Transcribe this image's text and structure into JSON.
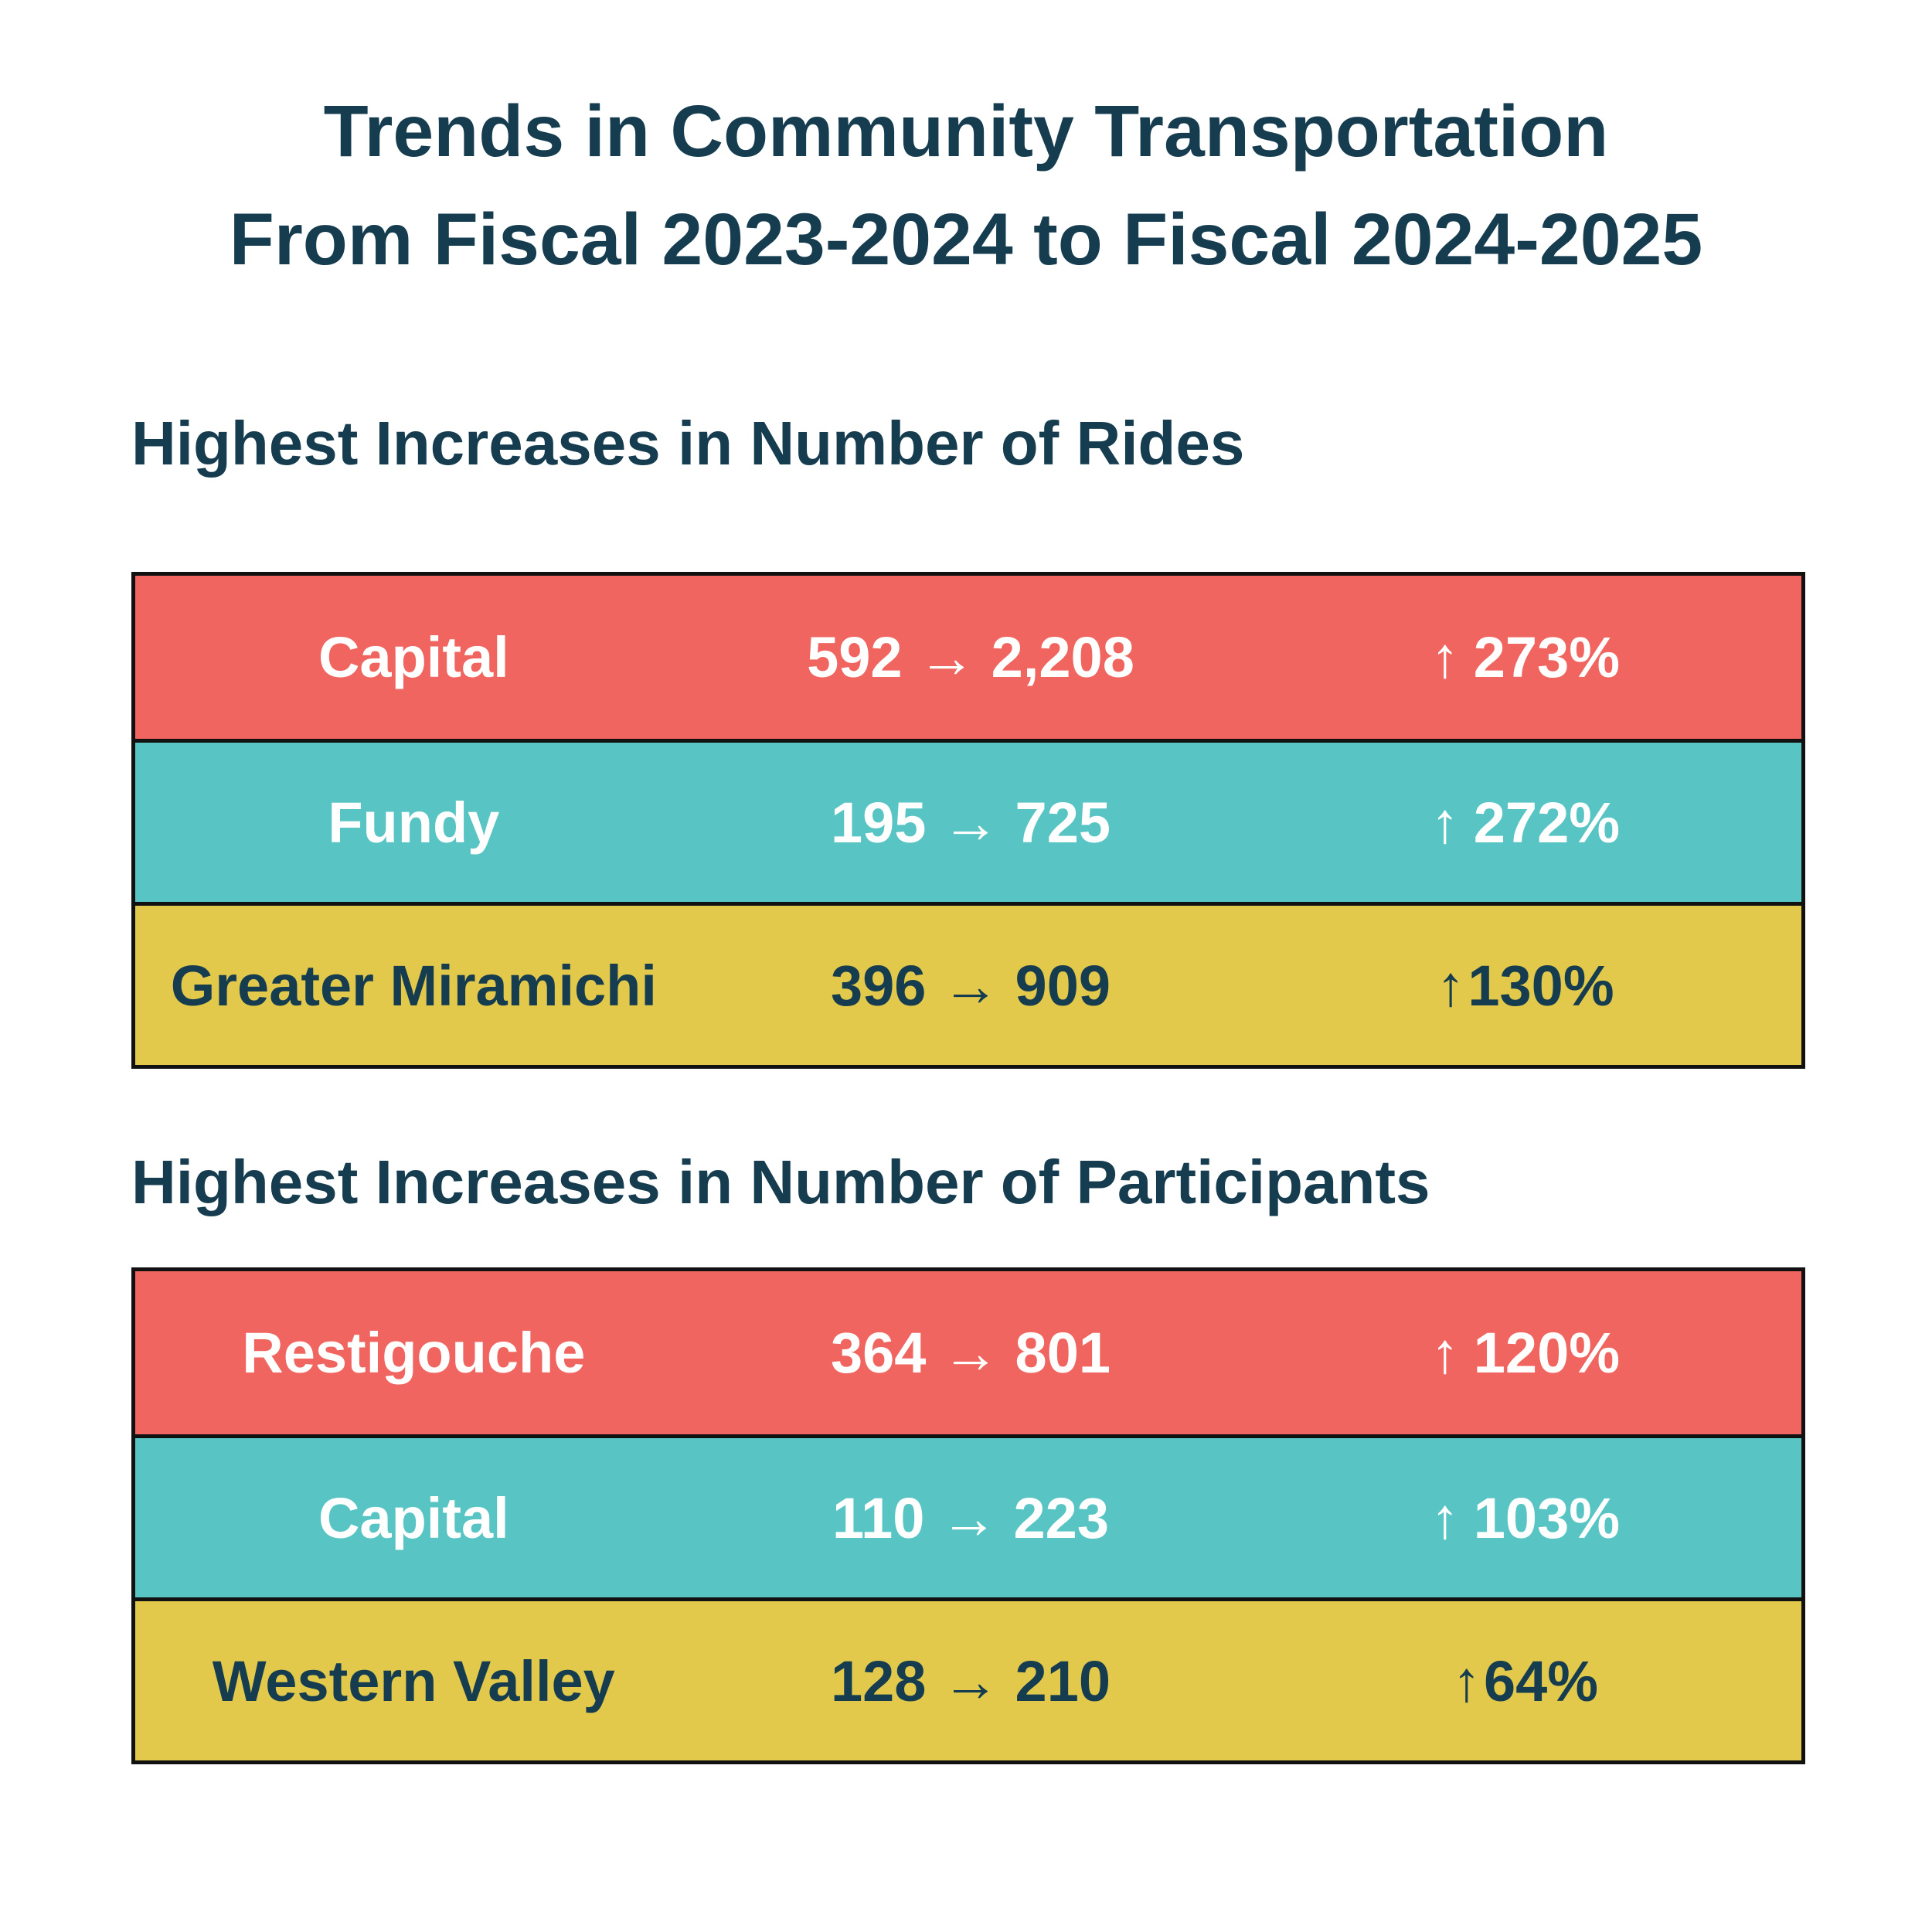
{
  "title": {
    "line1": "Trends in Community Transportation",
    "line2": "From Fiscal 2023-2024 to Fiscal 2024-2025"
  },
  "sections": [
    {
      "heading": "Highest Increases in Number of Rides",
      "rows": [
        {
          "region": "Capital",
          "change": "592 → 2,208",
          "arrow": "↑",
          "percent": "273%",
          "color": "#f0655f"
        },
        {
          "region": "Fundy",
          "change": "195 → 725",
          "arrow": "↑",
          "percent": "272%",
          "color": "#58c5c4"
        },
        {
          "region": "Greater Miramichi",
          "change": "396 → 909",
          "arrow": "↑",
          "percent": "130%",
          "color": "#e2c94c"
        }
      ]
    },
    {
      "heading": "Highest Increases in Number of Participants",
      "rows": [
        {
          "region": "Restigouche",
          "change": "364 → 801",
          "arrow": "↑",
          "percent": "120%",
          "color": "#f0655f"
        },
        {
          "region": "Capital",
          "change": "110 → 223",
          "arrow": "↑",
          "percent": "103%",
          "color": "#58c5c4"
        },
        {
          "region": "Western Valley",
          "change": "128 → 210",
          "arrow": "↑",
          "percent": "64%",
          "color": "#e2c94c"
        }
      ]
    }
  ],
  "colors": {
    "text_dark": "#163d4f",
    "red": "#f0655f",
    "teal": "#58c5c4",
    "yellow": "#e2c94c",
    "border": "#111111"
  }
}
